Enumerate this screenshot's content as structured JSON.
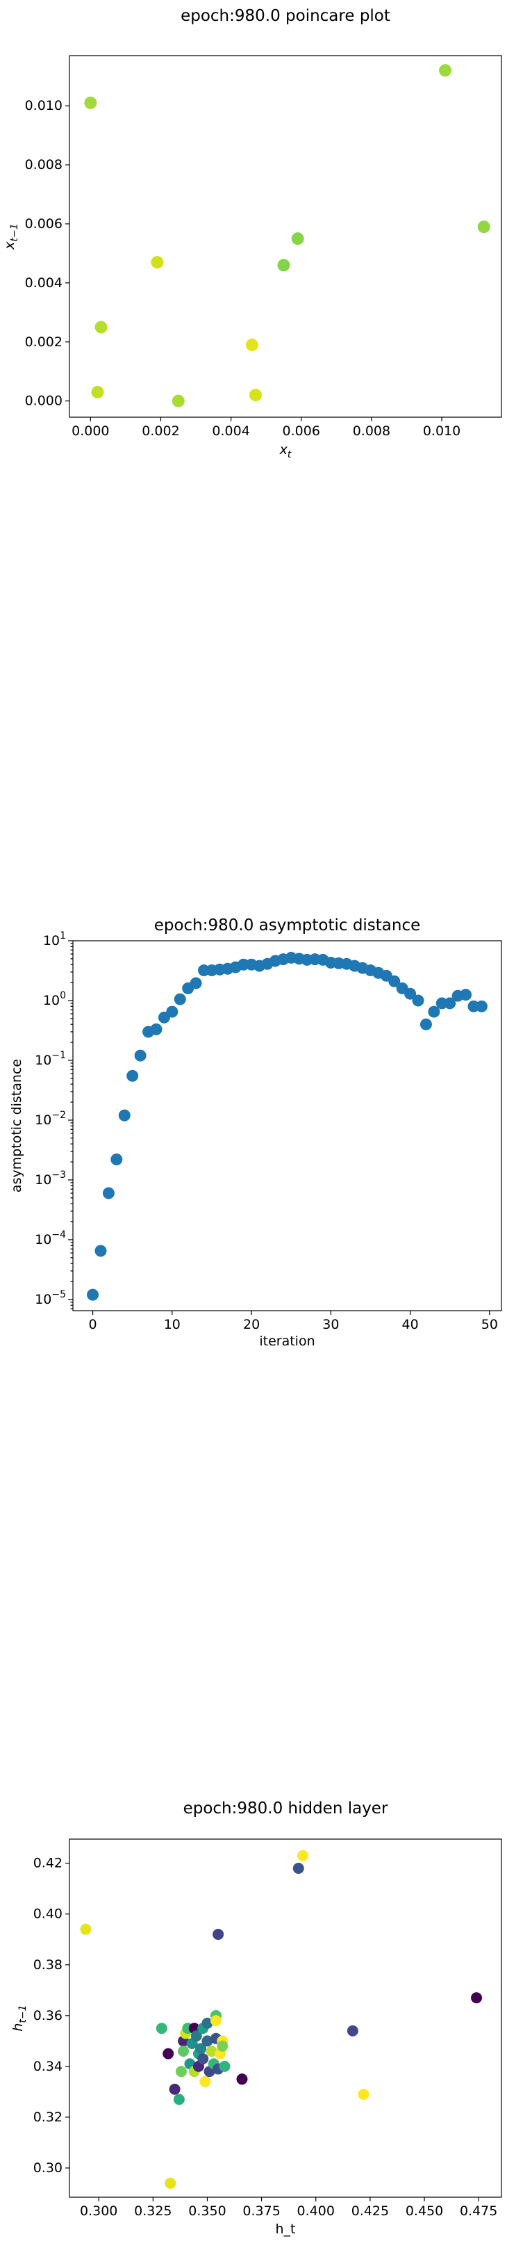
{
  "chart_data": [
    {
      "type": "scatter",
      "title": "epoch:980.0 poincare plot",
      "xlabel": "x_t",
      "ylabel": "x_{t-1}",
      "xlim": [
        -0.0006,
        0.0117
      ],
      "ylim": [
        -0.00055,
        0.0117
      ],
      "xticks": [
        0.0,
        0.002,
        0.004,
        0.006,
        0.008,
        0.01
      ],
      "xtick_labels": [
        "0.000",
        "0.002",
        "0.004",
        "0.006",
        "0.008",
        "0.010"
      ],
      "yticks": [
        0.0,
        0.002,
        0.004,
        0.006,
        0.008,
        0.01
      ],
      "ytick_labels": [
        "0.000",
        "0.002",
        "0.004",
        "0.006",
        "0.008",
        "0.010"
      ],
      "points": [
        {
          "x": 0.0,
          "y": 0.0101,
          "color": "#a2d93b"
        },
        {
          "x": 0.0002,
          "y": 0.0003,
          "color": "#c0df25"
        },
        {
          "x": 0.0003,
          "y": 0.0025,
          "color": "#b5de2b"
        },
        {
          "x": 0.0019,
          "y": 0.0047,
          "color": "#d0e11c"
        },
        {
          "x": 0.0025,
          "y": 0.0,
          "color": "#a8db34"
        },
        {
          "x": 0.0046,
          "y": 0.0019,
          "color": "#e5e419"
        },
        {
          "x": 0.0047,
          "y": 0.0002,
          "color": "#d8e219"
        },
        {
          "x": 0.0055,
          "y": 0.0046,
          "color": "#84d44b"
        },
        {
          "x": 0.0059,
          "y": 0.0055,
          "color": "#86d549"
        },
        {
          "x": 0.0101,
          "y": 0.0112,
          "color": "#9bd93c"
        },
        {
          "x": 0.0112,
          "y": 0.0059,
          "color": "#90d743"
        }
      ]
    },
    {
      "type": "scatter",
      "title": "epoch:980.0 asymptotic distance",
      "xlabel": "iteration",
      "ylabel": "asymptotic distance",
      "yscale": "log",
      "xlim": [
        -2.5,
        51.5
      ],
      "ylim": [
        6.5e-06,
        10
      ],
      "xticks": [
        0,
        10,
        20,
        30,
        40,
        50
      ],
      "xtick_labels": [
        "0",
        "10",
        "20",
        "30",
        "40",
        "50"
      ],
      "yticks": [
        -5,
        -4,
        -3,
        -2,
        -1,
        0,
        1
      ],
      "ytick_base": [
        "10",
        "10",
        "10",
        "10",
        "10",
        "10",
        "10"
      ],
      "ytick_exp": [
        "−5",
        "−4",
        "−3",
        "−2",
        "−1",
        "0",
        "1"
      ],
      "color": "#1f77b4",
      "x": [
        0,
        1,
        2,
        3,
        4,
        5,
        6,
        7,
        8,
        9,
        10,
        11,
        12,
        13,
        14,
        15,
        16,
        17,
        18,
        19,
        20,
        21,
        22,
        23,
        24,
        25,
        26,
        27,
        28,
        29,
        30,
        31,
        32,
        33,
        34,
        35,
        36,
        37,
        38,
        39,
        40,
        41,
        42,
        43,
        44,
        45,
        46,
        47,
        48,
        49
      ],
      "y": [
        1.2e-05,
        6.5e-05,
        0.0006,
        0.0022,
        0.012,
        0.055,
        0.12,
        0.3,
        0.33,
        0.52,
        0.65,
        1.05,
        1.6,
        1.95,
        3.2,
        3.2,
        3.3,
        3.4,
        3.6,
        4.0,
        4.0,
        3.8,
        4.1,
        4.6,
        4.9,
        5.2,
        5.0,
        4.8,
        4.9,
        4.8,
        4.3,
        4.2,
        4.1,
        3.8,
        3.5,
        3.2,
        2.9,
        2.6,
        2.1,
        1.6,
        1.3,
        1.0,
        0.4,
        0.65,
        0.9,
        0.9,
        1.2,
        1.25,
        0.8,
        0.8
      ]
    },
    {
      "type": "scatter",
      "title": "epoch:980.0 hidden layer",
      "xlabel": "h_t",
      "ylabel": "h_{t-1}",
      "xlim": [
        0.2865,
        0.4855
      ],
      "ylim": [
        0.2885,
        0.4295
      ],
      "xticks": [
        0.3,
        0.325,
        0.35,
        0.375,
        0.4,
        0.425,
        0.45,
        0.475
      ],
      "xtick_labels": [
        "0.300",
        "0.325",
        "0.350",
        "0.375",
        "0.400",
        "0.425",
        "0.450",
        "0.475"
      ],
      "yticks": [
        0.3,
        0.32,
        0.34,
        0.36,
        0.38,
        0.4,
        0.42
      ],
      "ytick_labels": [
        "0.30",
        "0.32",
        "0.34",
        "0.36",
        "0.38",
        "0.40",
        "0.42"
      ],
      "points": [
        {
          "x": 0.294,
          "y": 0.394,
          "color": "#e5e419"
        },
        {
          "x": 0.394,
          "y": 0.423,
          "color": "#fde725"
        },
        {
          "x": 0.392,
          "y": 0.418,
          "color": "#3b528b"
        },
        {
          "x": 0.355,
          "y": 0.392,
          "color": "#414487"
        },
        {
          "x": 0.474,
          "y": 0.367,
          "color": "#440154"
        },
        {
          "x": 0.417,
          "y": 0.354,
          "color": "#3e4a89"
        },
        {
          "x": 0.422,
          "y": 0.329,
          "color": "#fde725"
        },
        {
          "x": 0.333,
          "y": 0.294,
          "color": "#e5e419"
        },
        {
          "x": 0.329,
          "y": 0.355,
          "color": "#35b779"
        },
        {
          "x": 0.332,
          "y": 0.345,
          "color": "#440154"
        },
        {
          "x": 0.335,
          "y": 0.331,
          "color": "#482878"
        },
        {
          "x": 0.337,
          "y": 0.327,
          "color": "#29af7f"
        },
        {
          "x": 0.338,
          "y": 0.338,
          "color": "#6ece58"
        },
        {
          "x": 0.339,
          "y": 0.35,
          "color": "#482677"
        },
        {
          "x": 0.339,
          "y": 0.346,
          "color": "#5ec962"
        },
        {
          "x": 0.34,
          "y": 0.353,
          "color": "#d2e21b"
        },
        {
          "x": 0.341,
          "y": 0.355,
          "color": "#3dbc74"
        },
        {
          "x": 0.342,
          "y": 0.341,
          "color": "#1f988b"
        },
        {
          "x": 0.343,
          "y": 0.349,
          "color": "#21918c"
        },
        {
          "x": 0.344,
          "y": 0.338,
          "color": "#b5de2b"
        },
        {
          "x": 0.344,
          "y": 0.355,
          "color": "#440154"
        },
        {
          "x": 0.345,
          "y": 0.352,
          "color": "#2a788e"
        },
        {
          "x": 0.346,
          "y": 0.345,
          "color": "#20a486"
        },
        {
          "x": 0.346,
          "y": 0.34,
          "color": "#482878"
        },
        {
          "x": 0.347,
          "y": 0.347,
          "color": "#26828e"
        },
        {
          "x": 0.348,
          "y": 0.355,
          "color": "#1fa188"
        },
        {
          "x": 0.348,
          "y": 0.343,
          "color": "#3b528b"
        },
        {
          "x": 0.349,
          "y": 0.334,
          "color": "#fde725"
        },
        {
          "x": 0.35,
          "y": 0.35,
          "color": "#31688e"
        },
        {
          "x": 0.35,
          "y": 0.357,
          "color": "#2c728e"
        },
        {
          "x": 0.351,
          "y": 0.338,
          "color": "#3e4a89"
        },
        {
          "x": 0.352,
          "y": 0.346,
          "color": "#b8de29"
        },
        {
          "x": 0.353,
          "y": 0.341,
          "color": "#35b779"
        },
        {
          "x": 0.354,
          "y": 0.36,
          "color": "#4ac16d"
        },
        {
          "x": 0.354,
          "y": 0.358,
          "color": "#fde725"
        },
        {
          "x": 0.354,
          "y": 0.351,
          "color": "#3b528b"
        },
        {
          "x": 0.355,
          "y": 0.339,
          "color": "#3b528b"
        },
        {
          "x": 0.356,
          "y": 0.345,
          "color": "#fde725"
        },
        {
          "x": 0.357,
          "y": 0.35,
          "color": "#fde725"
        },
        {
          "x": 0.357,
          "y": 0.348,
          "color": "#7ad151"
        },
        {
          "x": 0.358,
          "y": 0.34,
          "color": "#2fb47c"
        },
        {
          "x": 0.366,
          "y": 0.335,
          "color": "#440154"
        }
      ]
    }
  ]
}
